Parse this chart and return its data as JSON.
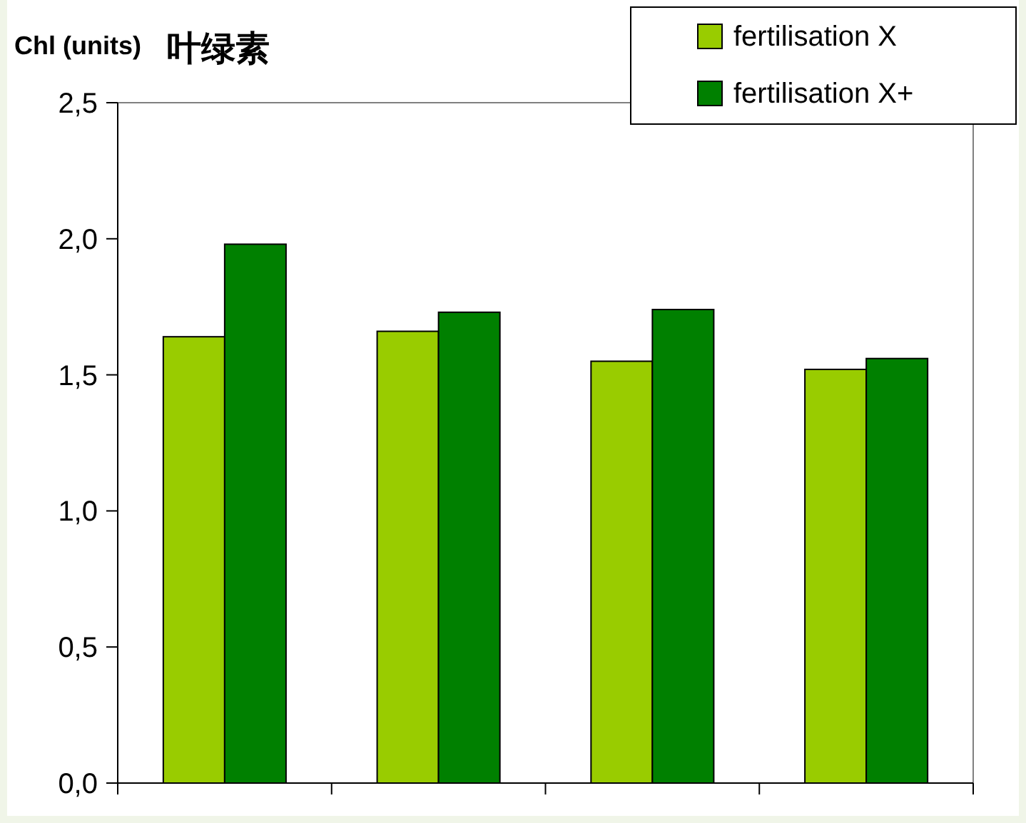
{
  "chart_data": {
    "type": "bar",
    "title": "Chl (units)",
    "subtitle": "叶绿素",
    "categories": [
      null,
      null,
      null,
      null
    ],
    "series": [
      {
        "name": "fertilisation X",
        "color": "#99cc00",
        "values": [
          1.64,
          1.66,
          1.55,
          1.52
        ]
      },
      {
        "name": "fertilisation X+",
        "color": "#008000",
        "values": [
          1.98,
          1.73,
          1.74,
          1.56
        ]
      }
    ],
    "ylim": [
      0,
      2.5
    ],
    "yticks": [
      {
        "value": 0,
        "label": "0,0"
      },
      {
        "value": 0.5,
        "label": "0,5"
      },
      {
        "value": 1,
        "label": "1,0"
      },
      {
        "value": 1.5,
        "label": "1,5"
      },
      {
        "value": 2,
        "label": "2,0"
      },
      {
        "value": 2.5,
        "label": "2,5"
      }
    ],
    "legend": "top right",
    "tick_labels": "y"
  }
}
